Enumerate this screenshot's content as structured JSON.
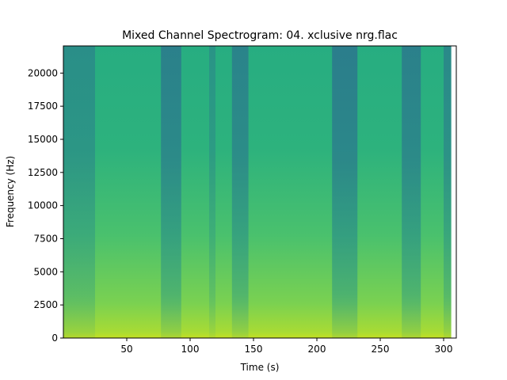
{
  "chart_data": {
    "type": "heatmap",
    "title": "Mixed Channel Spectrogram: 04. xclusive nrg.flac",
    "xlabel": "Time (s)",
    "ylabel": "Frequency (Hz)",
    "xlim": [
      0,
      310
    ],
    "ylim": [
      0,
      22050
    ],
    "data_end_time": 306,
    "x_ticks": [
      50,
      100,
      150,
      200,
      250,
      300
    ],
    "y_ticks": [
      0,
      2500,
      5000,
      7500,
      10000,
      12500,
      15000,
      17500,
      20000
    ],
    "grid": false,
    "colormap": "viridis",
    "dark_time_bands": [
      {
        "start": 0,
        "end": 25,
        "intensity": 0.55
      },
      {
        "start": 77,
        "end": 93,
        "intensity": 0.8
      },
      {
        "start": 115,
        "end": 120,
        "intensity": 0.45
      },
      {
        "start": 133,
        "end": 146,
        "intensity": 0.75
      },
      {
        "start": 212,
        "end": 232,
        "intensity": 0.85
      },
      {
        "start": 267,
        "end": 282,
        "intensity": 0.8
      },
      {
        "start": 300,
        "end": 306,
        "intensity": 0.65
      }
    ]
  }
}
